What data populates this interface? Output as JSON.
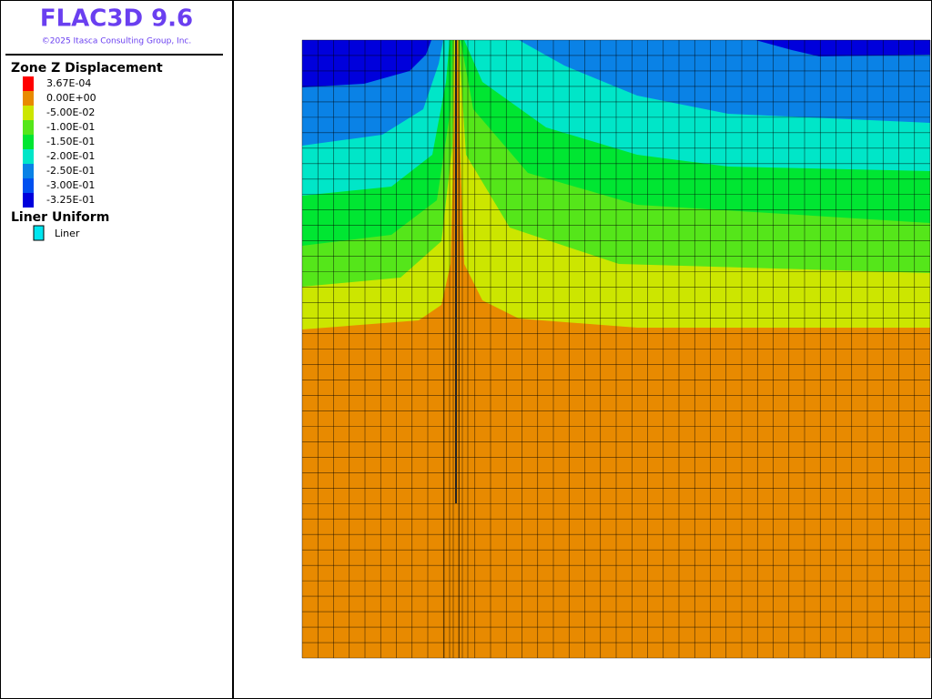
{
  "header": {
    "title": "FLAC3D 9.6",
    "copyright": "©2025 Itasca Consulting Group, Inc."
  },
  "legend": {
    "title": "Zone Z Displacement",
    "items": [
      {
        "label": "3.67E-04",
        "color": "#ff0000"
      },
      {
        "label": "0.00E+00",
        "color": "#e88a00"
      },
      {
        "label": "-5.00E-02",
        "color": "#cce600"
      },
      {
        "label": "-1.00E-01",
        "color": "#55e61a"
      },
      {
        "label": "-1.50E-01",
        "color": "#00e632"
      },
      {
        "label": "-2.00E-01",
        "color": "#00e6c8"
      },
      {
        "label": "-2.50E-01",
        "color": "#0a82e6"
      },
      {
        "label": "-3.00E-01",
        "color": "#0050f0"
      },
      {
        "label": "-3.25E-01",
        "color": "#0000dc"
      }
    ]
  },
  "liner_legend": {
    "title": "Liner Uniform",
    "items": [
      {
        "label": "Liner",
        "color": "#00e6f0"
      }
    ]
  }
}
